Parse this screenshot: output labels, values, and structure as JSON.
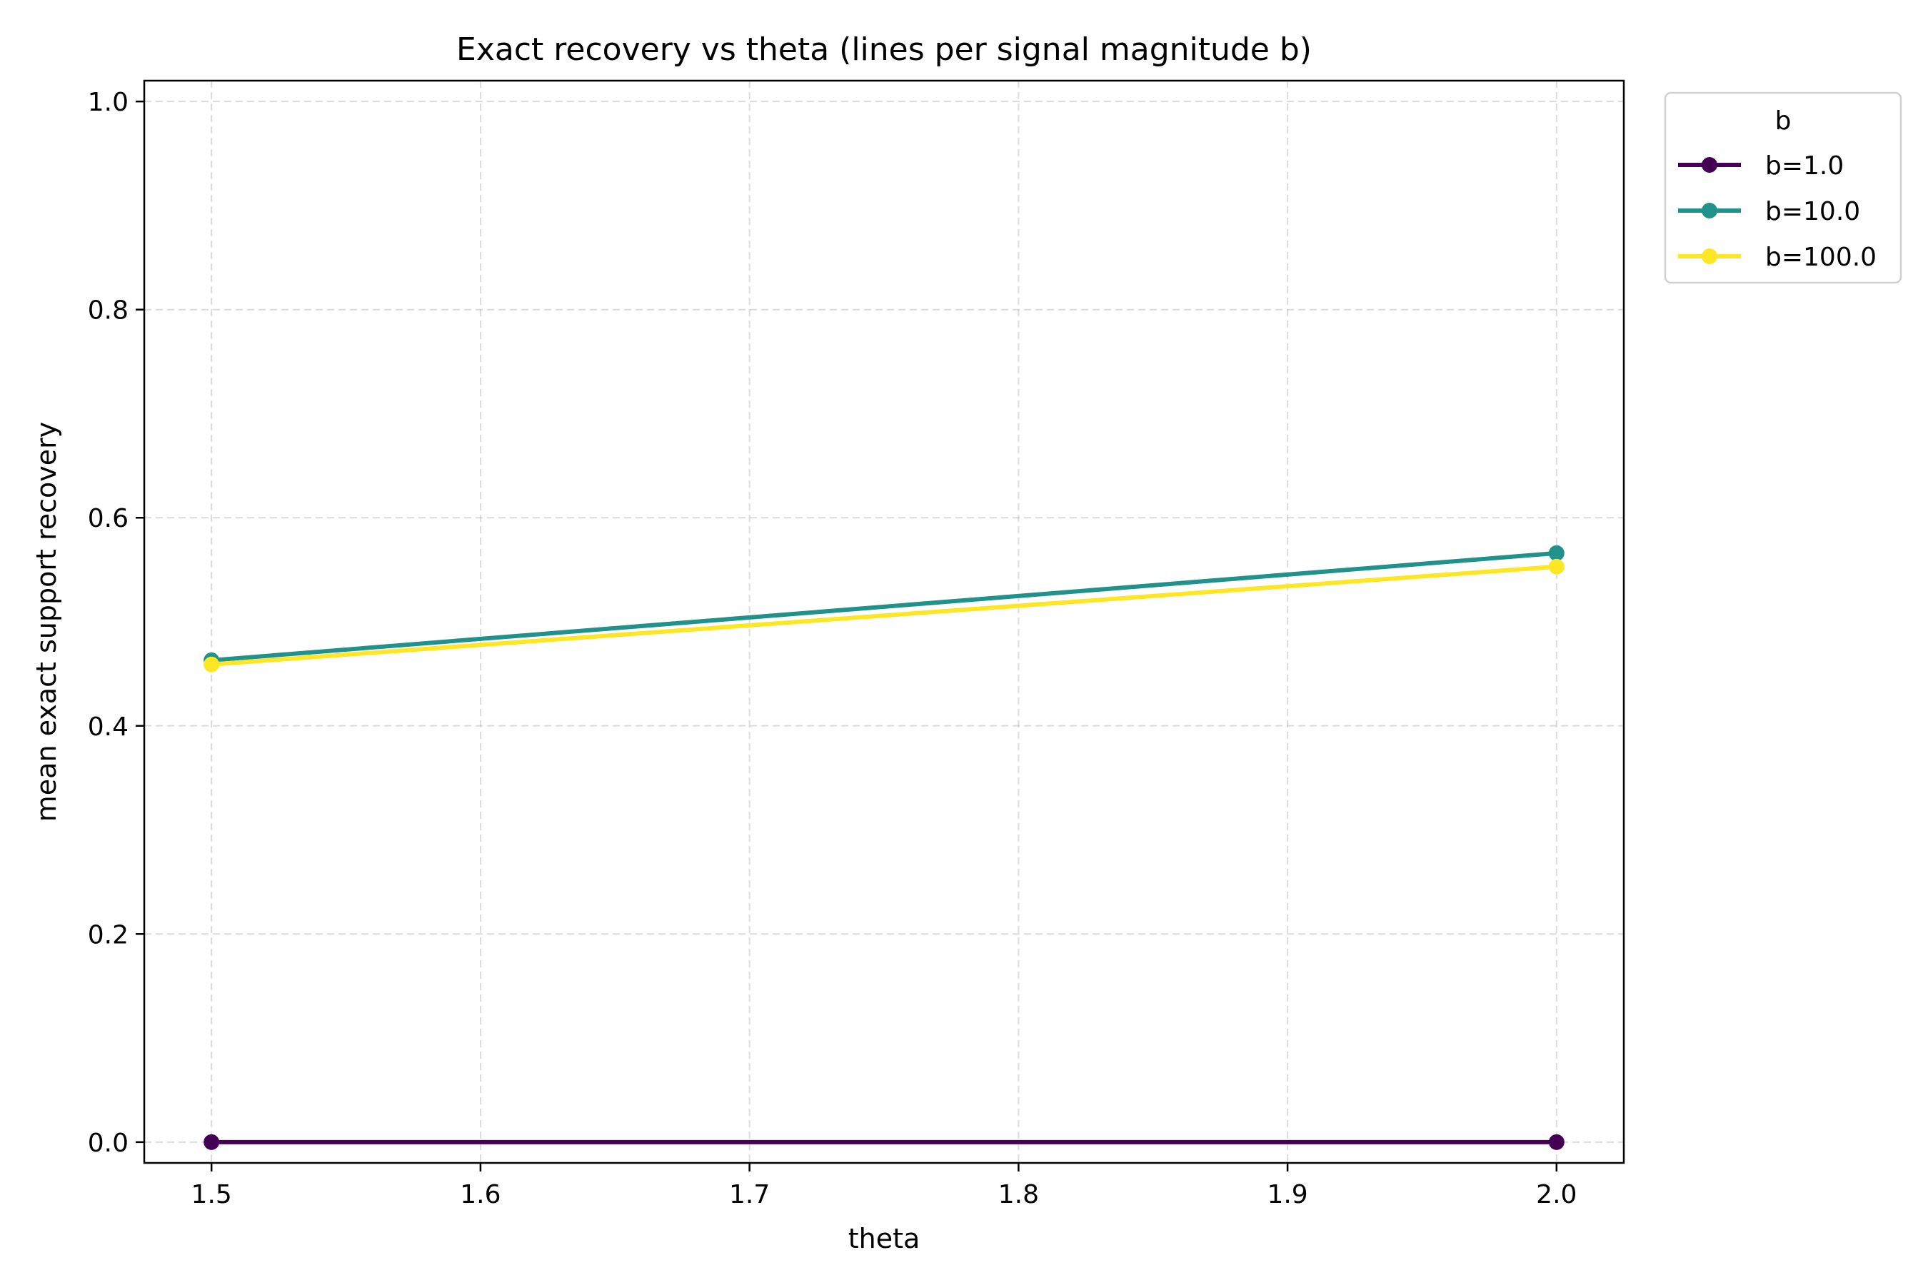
{
  "chart_data": {
    "type": "line",
    "title": "Exact recovery vs theta (lines per signal magnitude b)",
    "xlabel": "theta",
    "ylabel": "mean exact support recovery",
    "xlim": [
      1.475,
      2.025
    ],
    "ylim": [
      -0.02,
      1.02
    ],
    "x_ticks": [
      1.5,
      1.6,
      1.7,
      1.8,
      1.9,
      2.0
    ],
    "x_tick_labels": [
      "1.5",
      "1.6",
      "1.7",
      "1.8",
      "1.9",
      "2.0"
    ],
    "y_ticks": [
      0.0,
      0.2,
      0.4,
      0.6,
      0.8,
      1.0
    ],
    "y_tick_labels": [
      "0.0",
      "0.2",
      "0.4",
      "0.6",
      "0.8",
      "1.0"
    ],
    "grid": true,
    "x": [
      1.5,
      2.0
    ],
    "legend": {
      "title": "b",
      "placement": "outside-top-right"
    },
    "series": [
      {
        "name": "b=1.0",
        "color": "#440154",
        "marker": "circle",
        "values": [
          0.0,
          0.0
        ]
      },
      {
        "name": "b=10.0",
        "color": "#21918c",
        "marker": "circle",
        "values": [
          0.463,
          0.566
        ]
      },
      {
        "name": "b=100.0",
        "color": "#fde725",
        "marker": "circle",
        "values": [
          0.459,
          0.553
        ]
      }
    ]
  }
}
